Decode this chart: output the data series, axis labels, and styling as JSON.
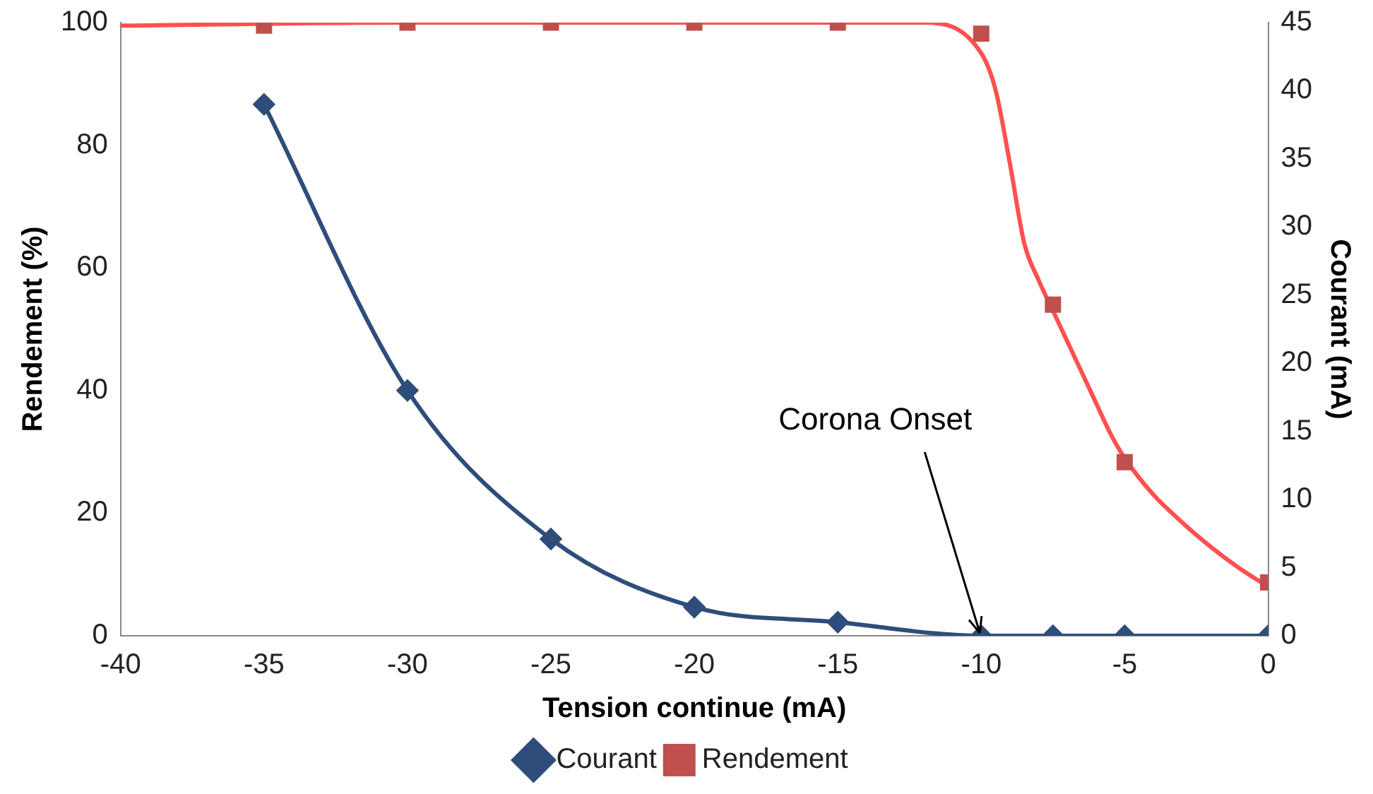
{
  "chart_data": {
    "type": "line",
    "xlabel": "Tension continue (mA)",
    "ylabel": "Rendement (%)",
    "y2label": "Courant (mA)",
    "xlim": [
      -40,
      0
    ],
    "xticks": [
      -40,
      -35,
      -30,
      -25,
      -20,
      -15,
      -10,
      -5,
      0
    ],
    "ylim": [
      0,
      100
    ],
    "yticks": [
      0,
      20,
      40,
      60,
      80,
      100
    ],
    "y2lim": [
      0,
      45
    ],
    "y2ticks": [
      0,
      5,
      10,
      15,
      20,
      25,
      30,
      35,
      40,
      45
    ],
    "grid": false,
    "legend": "bottom",
    "annotations": [
      {
        "text": "Corona Onset",
        "x": -10,
        "y": 0
      }
    ],
    "series": [
      {
        "name": "Courant",
        "type": "line",
        "axis": "y2",
        "color": "#2e4d7b",
        "marker": "diamond",
        "x": [
          -35,
          -30,
          -25,
          -20,
          -15,
          -10,
          -7.5,
          -5,
          0
        ],
        "values": [
          39,
          18,
          7.1,
          2.1,
          1,
          0,
          0,
          0,
          0
        ]
      },
      {
        "name": "Rendement",
        "type": "scatter",
        "axis": "y",
        "color": "#c0504d",
        "marker": "square",
        "x": [
          -35,
          -30,
          -25,
          -20,
          -15,
          -10,
          -7.5,
          -5,
          0
        ],
        "values": [
          99.5,
          100,
          100,
          100,
          100,
          98.2,
          54,
          28.3,
          8.7
        ]
      },
      {
        "type": "line",
        "axis": "y",
        "color": "#ff5050",
        "marker": "none",
        "x": [
          -40,
          -30,
          -20,
          -15,
          -12,
          -10,
          -9.5,
          -9,
          -8.5,
          -8,
          -7.5,
          -7,
          -6.5,
          -6,
          -5.5,
          -5,
          -4,
          -3,
          -2,
          -1,
          0
        ],
        "values": [
          99.5,
          100,
          100,
          100,
          100,
          95,
          89,
          77,
          64,
          58,
          53,
          48,
          43,
          38,
          33,
          29,
          23,
          18.5,
          14.5,
          11,
          8
        ]
      }
    ]
  }
}
